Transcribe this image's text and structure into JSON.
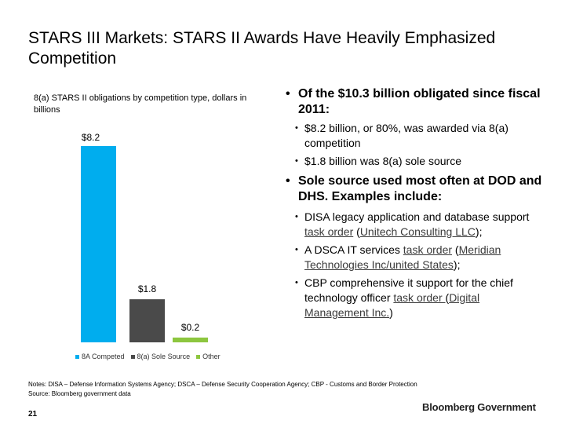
{
  "slide": {
    "title": "STARS III Markets: STARS II Awards Have Heavily Emphasized Competition",
    "page_number": "21",
    "brand": "Bloomberg Government",
    "notes": "Notes: DISA – Defense Information Systems Agency; DSCA – Defense Security Cooperation Agency; CBP - Customs and Border Protection",
    "source": "Source: Bloomberg government data"
  },
  "chart_data": {
    "type": "bar",
    "title": "8(a) STARS II obligations by competition type, dollars in billions",
    "categories": [
      "8A Competed",
      "8(a) Sole Source",
      "Other"
    ],
    "values": [
      8.2,
      1.8,
      0.2
    ],
    "data_labels": [
      "$8.2",
      "$1.8",
      "$0.2"
    ],
    "colors": [
      "#00ADEE",
      "#4A4A4A",
      "#8DC63F"
    ],
    "ylim": [
      0,
      8.2
    ],
    "grid": false,
    "legend": "bottom"
  },
  "bullets": {
    "b1": "Of the $10.3 billion obligated since fiscal 2011:",
    "b1a": "$8.2 billion, or 80%, was awarded via 8(a) competition",
    "b1b": "$1.8 billion was 8(a) sole source",
    "b2": "Sole source used most often at DOD and DHS. Examples include:",
    "b2a_pre": "DISA legacy application and database support ",
    "b2a_link1": "task order",
    "b2a_mid": " (",
    "b2a_link2": "Unitech Consulting LLC",
    "b2a_post": ");",
    "b2b_pre": "A DSCA IT services ",
    "b2b_link1": "task order",
    "b2b_mid": " (",
    "b2b_link2": "Meridian Technologies Inc/united States",
    "b2b_post": ");",
    "b2c_pre": "CBP comprehensive it support for the chief technology officer ",
    "b2c_link1": "task order ",
    "b2c_mid": "(",
    "b2c_link2": "Digital Management Inc.",
    "b2c_post": ")"
  },
  "bullet_glyph": "•"
}
